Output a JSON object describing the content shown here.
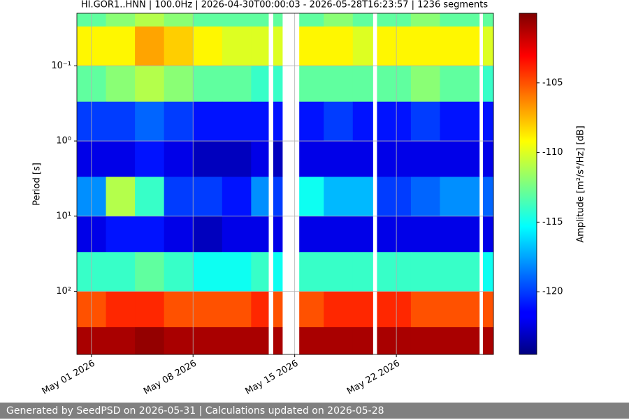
{
  "chart_data": {
    "type": "heatmap",
    "title": "HI.GOR1..HNN | 100.0Hz | 2026-04-30T00:00:03 - 2026-05-28T16:23:57 | 1236 segments",
    "y_label": "Period [s]",
    "colorbar_label": "Amplitude [m²/s⁴/Hz] [dB]",
    "colormap": "jet",
    "y_scale": "log",
    "y_inverted": true,
    "grid": true,
    "x_bins": [
      "2026-04-30T00:00:03",
      "2026-05-02",
      "2026-05-04",
      "2026-05-06",
      "2026-05-08",
      "2026-05-10",
      "2026-05-12",
      "2026-05-13T04:30",
      "2026-05-13T12:30",
      "2026-05-14T03:30",
      "2026-05-15T07:30",
      "2026-05-17",
      "2026-05-19",
      "2026-05-20T09:00",
      "2026-05-20T16:00",
      "2026-05-23",
      "2026-05-25",
      "2026-05-27T17:00",
      "2026-05-27T23:00",
      "2026-05-28T16:23:57"
    ],
    "y_bins": [
      0.02,
      0.03,
      0.1,
      0.3,
      1,
      3,
      10,
      30,
      100,
      300,
      690
    ],
    "values": [
      [
        -113,
        -112,
        -111,
        -112,
        -113,
        -113,
        -113,
        null,
        -113,
        null,
        -113,
        -112,
        -113,
        null,
        -113,
        -112,
        -113,
        null,
        -113
      ],
      [
        -109,
        -109,
        -107,
        -108,
        -109,
        -110,
        -110,
        null,
        -110,
        null,
        -109,
        -109,
        -110,
        null,
        -109,
        -109,
        -109,
        null,
        -110
      ],
      [
        -113,
        -112,
        -111,
        -112,
        -113,
        -113,
        -114,
        null,
        -114,
        null,
        -113,
        -113,
        -113,
        null,
        -113,
        -112,
        -113,
        null,
        -114
      ],
      [
        -120,
        -120,
        -119,
        -120,
        -121,
        -121,
        -121,
        null,
        -121,
        null,
        -121,
        -120,
        -121,
        null,
        -121,
        -120,
        -121,
        null,
        -121
      ],
      [
        -122,
        -122,
        -121,
        -122,
        -123,
        -123,
        -122,
        null,
        -123,
        null,
        -122,
        -122,
        -122,
        null,
        -122,
        -122,
        -122,
        null,
        -122
      ],
      [
        -118,
        -111,
        -114,
        -120,
        -120,
        -121,
        -118,
        null,
        -120,
        null,
        -115,
        -117,
        -117,
        null,
        -120,
        -119,
        -118,
        null,
        -119
      ],
      [
        -122,
        -121,
        -121,
        -122,
        -123,
        -122,
        -122,
        null,
        -122,
        null,
        -122,
        -122,
        -122,
        null,
        -122,
        -122,
        -122,
        null,
        -122
      ],
      [
        -114,
        -114,
        -113,
        -114,
        -115,
        -115,
        -114,
        null,
        -115,
        null,
        -114,
        -114,
        -114,
        null,
        -114,
        -114,
        -114,
        null,
        -115
      ],
      [
        -105,
        -104,
        -104,
        -105,
        -105,
        -105,
        -104,
        null,
        -105,
        null,
        -105,
        -104,
        -104,
        null,
        -104,
        -105,
        -105,
        null,
        -105
      ],
      [
        -101,
        -101,
        -100.5,
        -101,
        -101,
        -101,
        -101,
        null,
        -101,
        null,
        -101,
        -101,
        -101,
        null,
        -101,
        -101,
        -101,
        null,
        -101
      ]
    ],
    "xlim": [
      "2026-04-30T00:00:03",
      "2026-05-28T16:23:57"
    ],
    "xticks": [
      {
        "value": "2026-05-01",
        "label": "May 01 2026"
      },
      {
        "value": "2026-05-08",
        "label": "May 08 2026"
      },
      {
        "value": "2026-05-15",
        "label": "May 15 2026"
      },
      {
        "value": "2026-05-22",
        "label": "May 22 2026"
      }
    ],
    "ylim": [
      0.02,
      690
    ],
    "yticks": [
      {
        "value": 0.1,
        "label": "10⁻¹"
      },
      {
        "value": 1,
        "label": "10⁰"
      },
      {
        "value": 10,
        "label": "10¹"
      },
      {
        "value": 100,
        "label": "10²"
      }
    ],
    "clim": [
      -124.5,
      -100
    ],
    "cticks": [
      -105,
      -110,
      -115,
      -120
    ]
  },
  "footer": "Generated by SeedPSD on 2026-05-31 | Calculations updated on 2026-05-28"
}
